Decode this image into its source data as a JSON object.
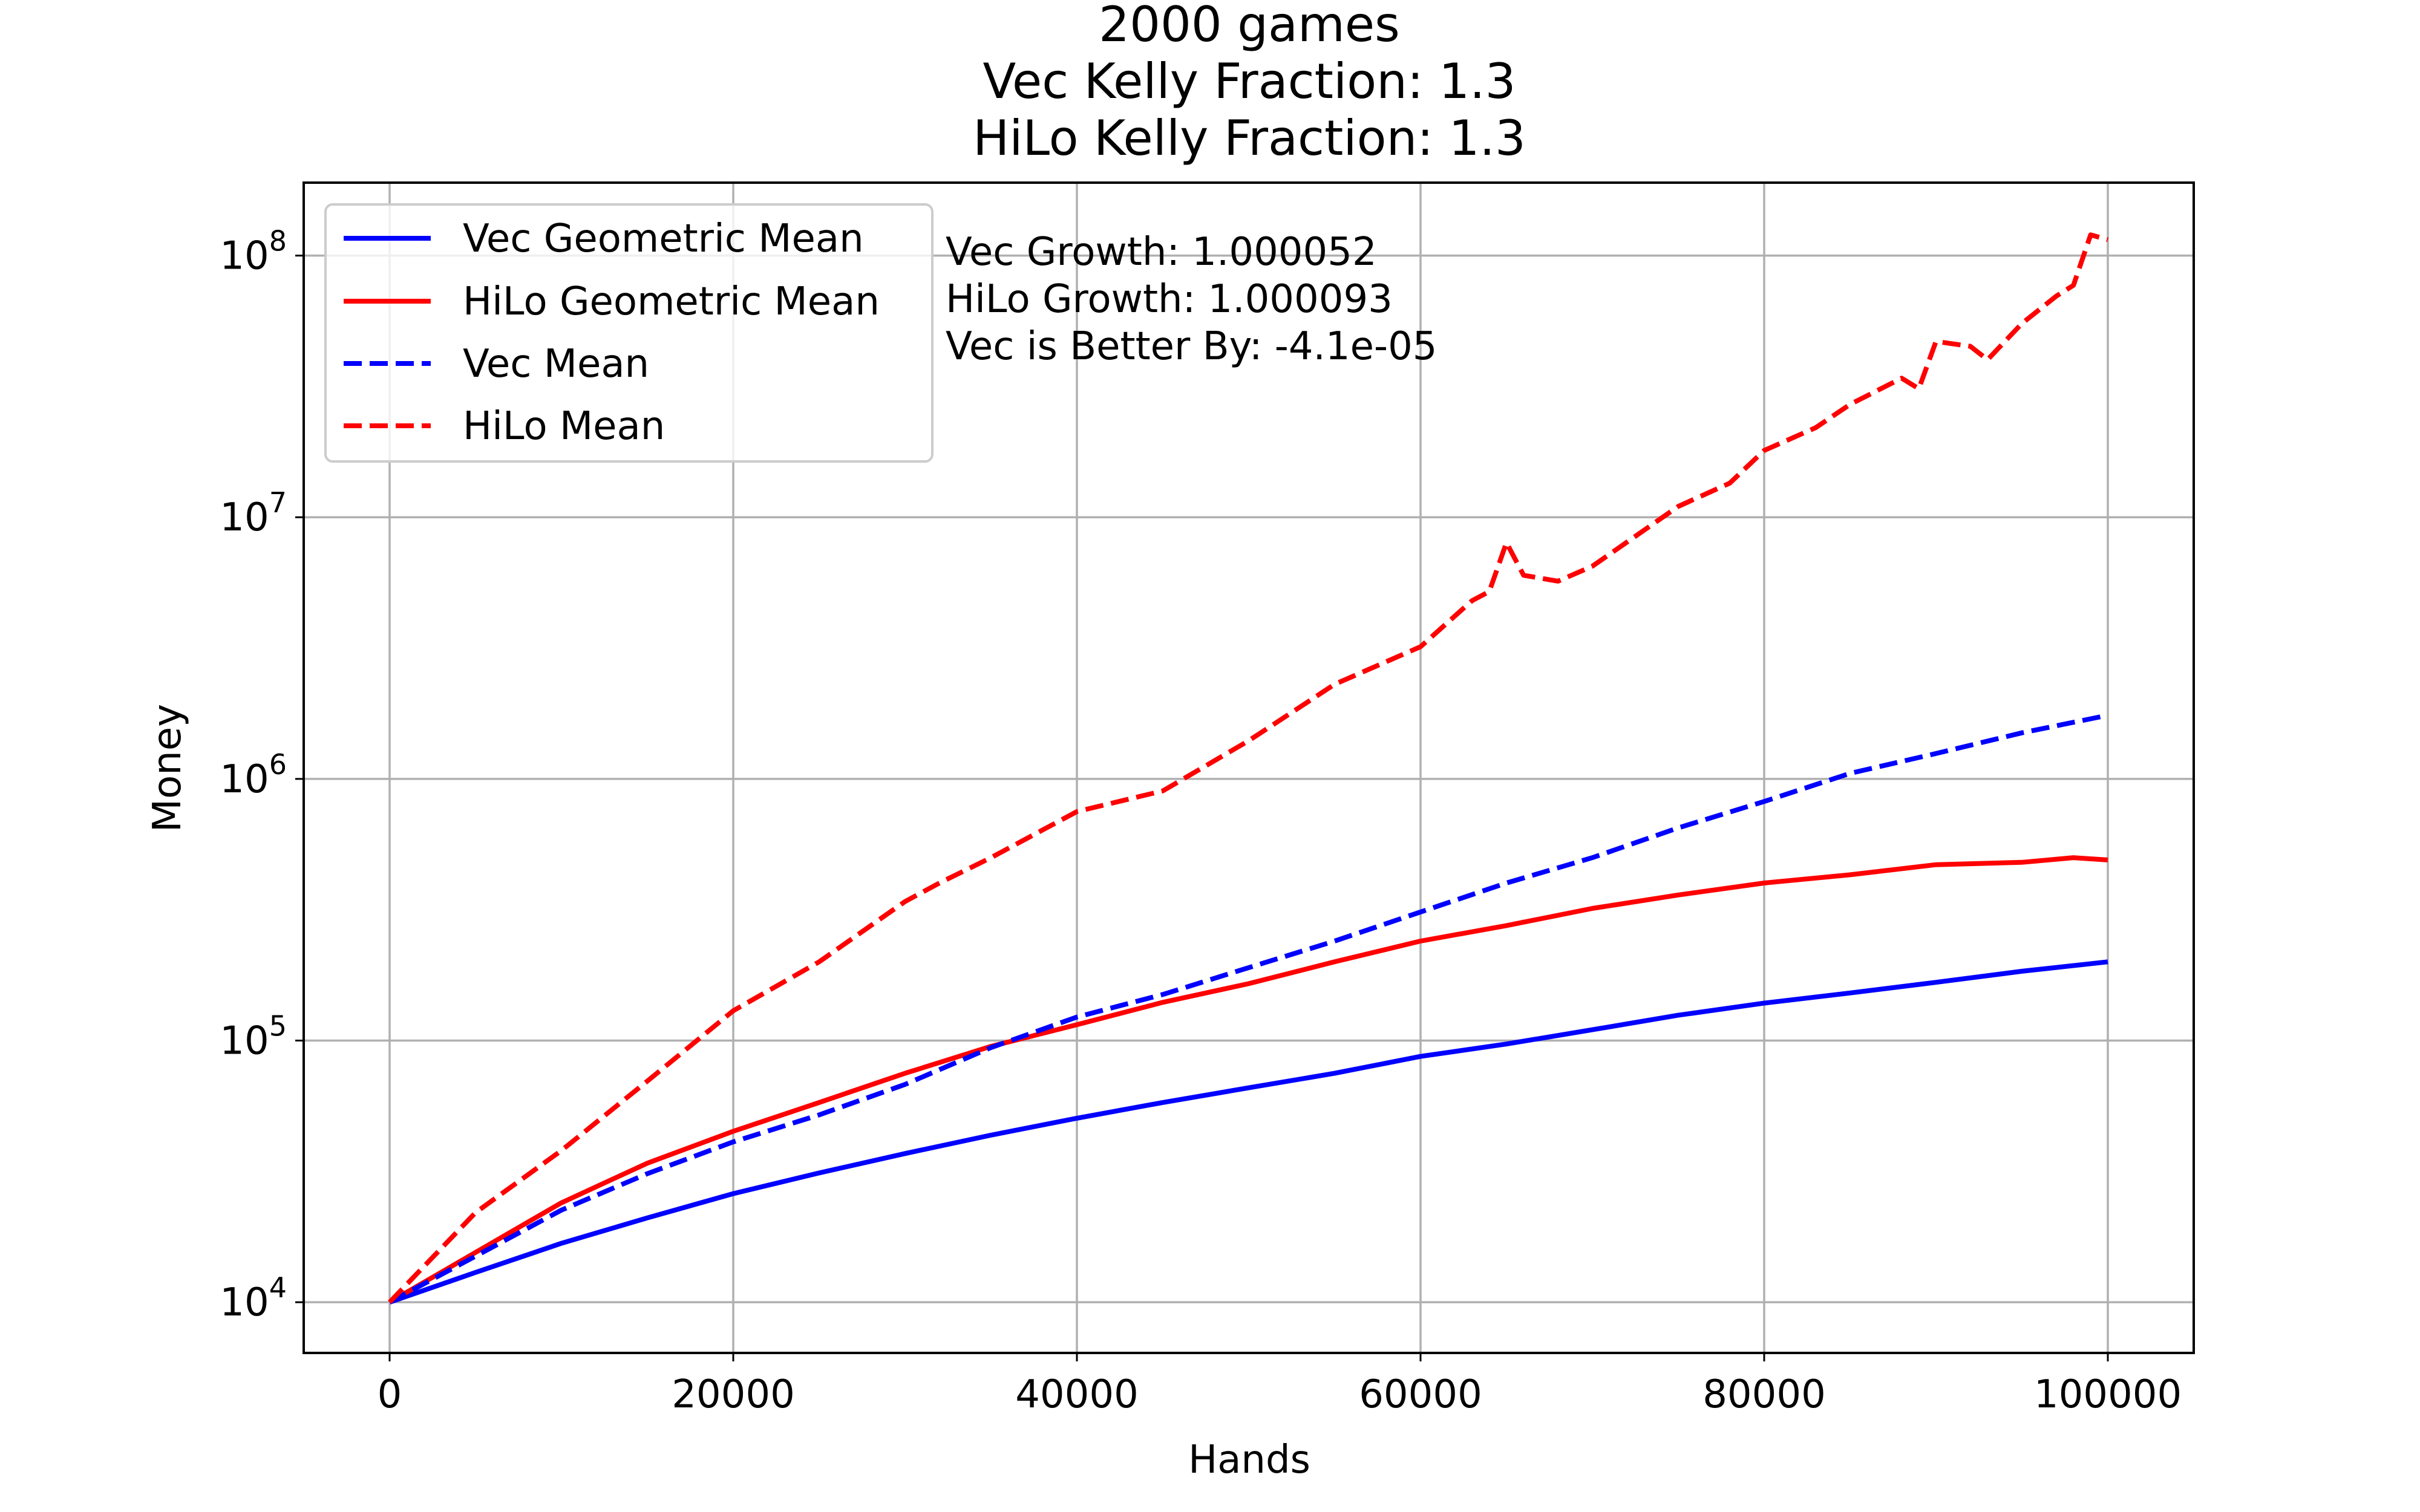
{
  "chart_data": {
    "type": "line",
    "title": [
      "2000 games",
      "Vec Kelly Fraction: 1.3",
      "HiLo Kelly Fraction: 1.3"
    ],
    "xlabel": "Hands",
    "ylabel": "Money",
    "xlim": [
      -5000,
      105000
    ],
    "ylim": [
      6400,
      190000000
    ],
    "yscale": "log",
    "grid": true,
    "legend_position": "top-left",
    "x_ticks": [
      {
        "value": 0,
        "label": "0"
      },
      {
        "value": 20000,
        "label": "20000"
      },
      {
        "value": 40000,
        "label": "40000"
      },
      {
        "value": 60000,
        "label": "60000"
      },
      {
        "value": 80000,
        "label": "80000"
      },
      {
        "value": 100000,
        "label": "100000"
      }
    ],
    "y_ticks": [
      {
        "value": 10000,
        "base": "10",
        "exp": "4"
      },
      {
        "value": 100000,
        "base": "10",
        "exp": "5"
      },
      {
        "value": 1000000,
        "base": "10",
        "exp": "6"
      },
      {
        "value": 10000000,
        "base": "10",
        "exp": "7"
      },
      {
        "value": 100000000,
        "base": "10",
        "exp": "8"
      }
    ],
    "annotations": [
      "Vec Growth: 1.000052",
      "HiLo Growth: 1.000093",
      "Vec is Better By: -4.1e-05"
    ],
    "series": [
      {
        "name": "Vec Geometric Mean",
        "color": "#0000ff",
        "style": "solid",
        "x": [
          0,
          5000,
          10000,
          15000,
          20000,
          25000,
          30000,
          35000,
          40000,
          45000,
          50000,
          55000,
          60000,
          65000,
          70000,
          75000,
          80000,
          85000,
          90000,
          95000,
          100000
        ],
        "y": [
          10000,
          13000,
          16800,
          21000,
          26000,
          31200,
          37000,
          43500,
          50500,
          58000,
          66000,
          75000,
          87000,
          97000,
          110000,
          125000,
          139000,
          152000,
          167000,
          184000,
          200000
        ]
      },
      {
        "name": "HiLo Geometric Mean",
        "color": "#ff0000",
        "style": "solid",
        "x": [
          0,
          5000,
          10000,
          15000,
          20000,
          25000,
          30000,
          35000,
          40000,
          45000,
          50000,
          55000,
          60000,
          65000,
          70000,
          75000,
          80000,
          85000,
          90000,
          95000,
          98000,
          100000
        ],
        "y": [
          10000,
          15500,
          24000,
          34000,
          45000,
          58000,
          75000,
          95000,
          115000,
          140000,
          165000,
          200000,
          240000,
          275000,
          320000,
          360000,
          400000,
          430000,
          470000,
          480000,
          500000,
          490000
        ]
      },
      {
        "name": "Vec Mean",
        "color": "#0000ff",
        "style": "dashed",
        "x": [
          0,
          5000,
          10000,
          15000,
          20000,
          25000,
          30000,
          35000,
          40000,
          45000,
          50000,
          55000,
          60000,
          65000,
          70000,
          75000,
          80000,
          85000,
          90000,
          95000,
          100000
        ],
        "y": [
          10000,
          15000,
          22500,
          31000,
          41000,
          52000,
          68000,
          94000,
          123000,
          150000,
          190000,
          240000,
          310000,
          400000,
          500000,
          650000,
          820000,
          1050000,
          1250000,
          1500000,
          1750000
        ]
      },
      {
        "name": "HiLo Mean",
        "color": "#ff0000",
        "style": "dashed",
        "x": [
          0,
          5000,
          10000,
          15000,
          20000,
          25000,
          30000,
          32000,
          35000,
          40000,
          45000,
          50000,
          55000,
          60000,
          63000,
          64000,
          65000,
          66000,
          68000,
          70000,
          75000,
          78000,
          80000,
          83000,
          85000,
          88000,
          89000,
          90000,
          92000,
          93000,
          95000,
          97000,
          98000,
          99000,
          100000
        ],
        "y": [
          10000,
          22000,
          38000,
          70000,
          130000,
          200000,
          340000,
          400000,
          500000,
          750000,
          900000,
          1400000,
          2300000,
          3200000,
          4800000,
          5200000,
          8000000,
          6000000,
          5700000,
          6500000,
          11000000,
          13500000,
          18000000,
          22000000,
          27000000,
          34000000,
          31000000,
          47000000,
          45000000,
          40000000,
          55000000,
          70000000,
          77000000,
          120000000,
          115000000
        ]
      }
    ]
  }
}
